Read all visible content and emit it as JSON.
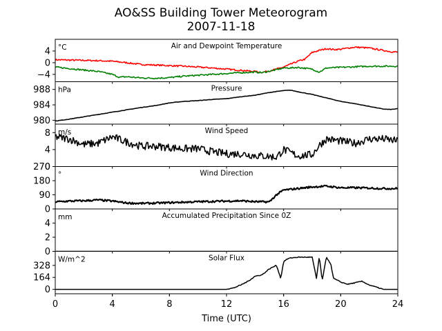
{
  "title_line1": "AO&SS Building Tower Meteorogram",
  "title_line2": "2007-11-18",
  "xlabel": "Time (UTC)",
  "chart_data": {
    "type": "line",
    "x_range": [
      0,
      24
    ],
    "x_ticks": [
      0,
      4,
      8,
      12,
      16,
      20,
      24
    ],
    "panels": [
      {
        "id": "temperature",
        "title": "Air and Dewpoint Temperature",
        "unit": "°C",
        "ylim": [
          -6.5,
          8
        ],
        "yticks": [
          4,
          0,
          -4
        ],
        "ytick_labels": [
          "4",
          "0",
          "−4"
        ],
        "series": [
          {
            "color": "#ff0000",
            "x": [
              0,
              1,
              2,
              3,
              4,
              5,
              6,
              7,
              8,
              9,
              10,
              11,
              12,
              13,
              14,
              14.5,
              15,
              15.5,
              16,
              16.5,
              17,
              17.5,
              18,
              18.5,
              19,
              19.5,
              20,
              20.5,
              21,
              21.5,
              22,
              22.5,
              23,
              23.5,
              24
            ],
            "y": [
              1,
              0.9,
              0.8,
              0.7,
              0.5,
              0,
              -0.6,
              -0.8,
              -1,
              -1.2,
              -1.5,
              -1.8,
              -2.2,
              -2.6,
              -3,
              -3.3,
              -2.8,
              -2.2,
              -1.5,
              -0.5,
              0.5,
              1.2,
              3.5,
              4.2,
              4.8,
              4.5,
              4.6,
              5,
              5.3,
              5.2,
              5,
              4.6,
              4.2,
              3.8,
              3.6
            ]
          },
          {
            "color": "#008000",
            "x": [
              0,
              1,
              2,
              3,
              4,
              4.5,
              5,
              6,
              7,
              8,
              9,
              10,
              11,
              12,
              13,
              14,
              14.5,
              15,
              15.5,
              16,
              16.5,
              17,
              18,
              18.5,
              19,
              20,
              21,
              22,
              23,
              24
            ],
            "y": [
              -1.5,
              -2,
              -2.5,
              -3,
              -4,
              -5,
              -4.8,
              -5.2,
              -5.3,
              -5.1,
              -4.6,
              -4.3,
              -4,
              -3.7,
              -3.4,
              -3.2,
              -3.4,
              -2.9,
              -2.4,
              -1.8,
              -1.8,
              -1.6,
              -2.2,
              -3.2,
              -1.8,
              -1.6,
              -1.4,
              -1.2,
              -1.2,
              -1.2
            ]
          }
        ]
      },
      {
        "id": "pressure",
        "title": "Pressure",
        "unit": "hPa",
        "ylim": [
          979,
          990
        ],
        "yticks": [
          988,
          984,
          980
        ],
        "ytick_labels": [
          "988",
          "984",
          "980"
        ],
        "series": [
          {
            "color": "#000000",
            "x": [
              0,
              1,
              2,
              3,
              4,
              5,
              6,
              7,
              8,
              9,
              10,
              11,
              12,
              13,
              14,
              15,
              16,
              16.5,
              17,
              18,
              19,
              20,
              21,
              22,
              23,
              23.5,
              24
            ],
            "y": [
              979.8,
              980.3,
              980.9,
              981.5,
              982.1,
              982.7,
              983.3,
              983.8,
              984.5,
              984.9,
              985.1,
              985.4,
              985.6,
              986.1,
              986.5,
              987.2,
              987.7,
              987.8,
              987.4,
              986.7,
              985.8,
              984.9,
              984.3,
              983.6,
              982.9,
              982.8,
              983
            ]
          }
        ]
      },
      {
        "id": "wind_speed",
        "title": "Wind Speed",
        "unit": "m/s",
        "ylim": [
          0,
          10
        ],
        "yticks": [
          8,
          4,
          0
        ],
        "ytick_labels": [
          "8",
          "4",
          "0"
        ],
        "series": [
          {
            "color": "#000000",
            "x": [
              0,
              1,
              2,
              3,
              4,
              5,
              6,
              7,
              8,
              9,
              10,
              11,
              12,
              13,
              14,
              15,
              15.5,
              16,
              17,
              18,
              18.5,
              19,
              20,
              21,
              22,
              23,
              24
            ],
            "y": [
              7,
              6.5,
              5.2,
              5.5,
              7,
              5.8,
              4.8,
              4.8,
              4.5,
              4.2,
              4.2,
              3.5,
              3,
              3,
              2.6,
              2.4,
              2.2,
              4,
              2.5,
              2.8,
              5,
              6.5,
              6,
              5.5,
              6.5,
              6.5,
              6
            ]
          }
        ]
      },
      {
        "id": "wind_direction",
        "title": "Wind Direction",
        "unit": "°",
        "ylim": [
          0,
          270
        ],
        "yticks": [
          270,
          180,
          90,
          0
        ],
        "ytick_labels": [
          "270",
          "180",
          "90",
          "0"
        ],
        "series": [
          {
            "color": "#000000",
            "x": [
              0,
              1,
              2,
              3,
              4,
              5,
              6,
              7,
              8,
              9,
              10,
              11,
              12,
              13,
              14,
              15,
              15.5,
              16,
              17,
              18,
              19,
              20,
              21,
              22,
              23,
              24
            ],
            "y": [
              45,
              50,
              52,
              57,
              50,
              38,
              35,
              37,
              40,
              43,
              46,
              48,
              50,
              52,
              46,
              45,
              90,
              120,
              130,
              140,
              145,
              135,
              135,
              133,
              130,
              130
            ]
          }
        ]
      },
      {
        "id": "precipitation",
        "title": "Accumulated Precipitation Since 0Z",
        "unit": "mm",
        "ylim": [
          0,
          6
        ],
        "yticks": [
          4,
          2,
          0
        ],
        "ytick_labels": [
          "4",
          "2",
          "0"
        ],
        "series": [
          {
            "color": "#000000",
            "x": [
              0,
              24
            ],
            "y": [
              0,
              0
            ]
          }
        ]
      },
      {
        "id": "solar_flux",
        "title": "Solar Flux",
        "unit": "W/m^2",
        "ylim": [
          -60,
          520
        ],
        "yticks": [
          328,
          164,
          0
        ],
        "ytick_labels": [
          "328",
          "164",
          "0"
        ],
        "series": [
          {
            "color": "#000000",
            "x": [
              0,
              12,
              12.5,
              13,
              13.5,
              14,
              14.5,
              15,
              15.5,
              15.8,
              16,
              16.3,
              16.5,
              17,
              18,
              18.3,
              18.5,
              18.7,
              19,
              19.3,
              19.5,
              20,
              20.5,
              21,
              21.5,
              22,
              22.5,
              23,
              24
            ],
            "y": [
              0,
              0,
              20,
              60,
              110,
              180,
              200,
              280,
              330,
              150,
              380,
              420,
              430,
              440,
              440,
              150,
              450,
              120,
              440,
              350,
              150,
              100,
              70,
              90,
              110,
              60,
              30,
              0,
              0
            ]
          }
        ]
      }
    ]
  }
}
